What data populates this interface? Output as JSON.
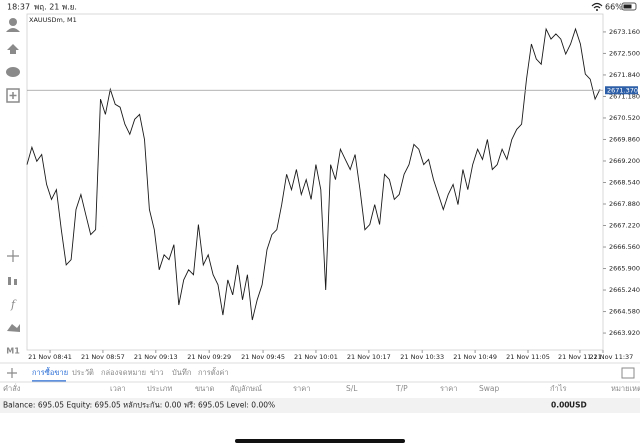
{
  "status_bar": {
    "time": "18:37",
    "date": "พฤ. 21 พ.ย.",
    "battery": "66%"
  },
  "toolbar": {
    "timeframe": "M1"
  },
  "chart": {
    "type": "line",
    "symbol": "XAUUSDm, M1",
    "color": "#1a1a1a",
    "values": [
      2669.09,
      2669.62,
      2669.19,
      2669.4,
      2668.48,
      2668.02,
      2668.32,
      2667.09,
      2666.01,
      2666.17,
      2667.71,
      2668.17,
      2667.55,
      2666.94,
      2667.09,
      2671.1,
      2670.63,
      2671.4,
      2670.94,
      2670.85,
      2670.33,
      2670.02,
      2670.48,
      2670.63,
      2669.86,
      2667.71,
      2667.09,
      2665.86,
      2666.32,
      2666.17,
      2666.63,
      2664.78,
      2665.55,
      2665.86,
      2665.71,
      2667.25,
      2666.01,
      2666.32,
      2665.71,
      2665.4,
      2664.47,
      2665.55,
      2665.09,
      2666.01,
      2664.94,
      2665.71,
      2664.32,
      2664.94,
      2665.4,
      2666.48,
      2666.94,
      2667.09,
      2667.86,
      2668.79,
      2668.32,
      2668.94,
      2668.17,
      2668.63,
      2668.02,
      2669.09,
      2668.32,
      2665.24,
      2669.09,
      2668.63,
      2669.56,
      2669.25,
      2668.94,
      2669.4,
      2668.32,
      2667.09,
      2667.25,
      2667.86,
      2667.25,
      2668.79,
      2668.63,
      2668.02,
      2668.17,
      2668.79,
      2669.09,
      2669.71,
      2669.56,
      2669.09,
      2669.25,
      2668.63,
      2668.17,
      2667.71,
      2668.17,
      2668.48,
      2667.86,
      2668.94,
      2668.32,
      2669.09,
      2669.56,
      2669.25,
      2669.86,
      2668.94,
      2669.09,
      2669.56,
      2669.25,
      2669.86,
      2670.17,
      2670.33,
      2671.71,
      2672.79,
      2672.33,
      2672.17,
      2673.25,
      2672.94,
      2673.1,
      2672.94,
      2672.48,
      2672.79,
      2673.25,
      2672.79,
      2671.87,
      2671.71,
      2671.1,
      2671.4
    ],
    "xlim": [
      0,
      117
    ],
    "xticks": [
      {
        "value": 4.7,
        "label": "21 Nov 08:41"
      },
      {
        "value": 15.5,
        "label": "21 Nov 08:57"
      },
      {
        "value": 26.3,
        "label": "21 Nov 09:13"
      },
      {
        "value": 37.2,
        "label": "21 Nov 09:29"
      },
      {
        "value": 48.2,
        "label": "21 Nov 09:45"
      },
      {
        "value": 59,
        "label": "21 Nov 10:01"
      },
      {
        "value": 69.8,
        "label": "21 Nov 10:17"
      },
      {
        "value": 80.7,
        "label": "21 Nov 10:33"
      },
      {
        "value": 91.5,
        "label": "21 Nov 10:49"
      },
      {
        "value": 102.3,
        "label": "21 Nov 11:05"
      },
      {
        "value": 112.9,
        "label": "21 Nov 11:21"
      },
      {
        "value": 123.8,
        "label": "21 Nov 11:37"
      }
    ],
    "ylim": [
      2663.4,
      2673.71
    ],
    "yticks": [
      {
        "value": 2673.16,
        "label": "2673.160"
      },
      {
        "value": 2672.5,
        "label": "2672.500"
      },
      {
        "value": 2671.84,
        "label": "2671.840"
      },
      {
        "value": 2671.18,
        "label": "2671.180"
      },
      {
        "value": 2670.52,
        "label": "2670.520"
      },
      {
        "value": 2669.86,
        "label": "2669.860"
      },
      {
        "value": 2669.2,
        "label": "2669.200"
      },
      {
        "value": 2668.54,
        "label": "2668.540"
      },
      {
        "value": 2667.88,
        "label": "2667.880"
      },
      {
        "value": 2667.22,
        "label": "2667.220"
      },
      {
        "value": 2666.56,
        "label": "2666.560"
      },
      {
        "value": 2665.9,
        "label": "2665.900"
      },
      {
        "value": 2665.24,
        "label": "2665.240"
      },
      {
        "value": 2664.58,
        "label": "2664.580"
      },
      {
        "value": 2663.92,
        "label": "2663.920"
      }
    ],
    "current_price": {
      "value": 2671.37,
      "label": "2671.370"
    }
  },
  "tabs": [
    "การซื้อขาย",
    "ประวัติ",
    "กล่องจดหมาย",
    "ข่าว",
    "บันทึก",
    "การตั้งค่า"
  ],
  "table": {
    "columns": [
      "คำสั่ง",
      "เวลา",
      "ประเภท",
      "ขนาด",
      "สัญลักษณ์",
      "ราคา",
      "S/L",
      "T/P",
      "ราคา",
      "Swap",
      "กำไร",
      "หมายเหตุ"
    ]
  },
  "account": {
    "summary": "Balance: 695.05 Equity: 695.05 หลักประกัน: 0.00 ฟรี: 695.05 Level: 0.00%",
    "profit": "0.00",
    "currency": "USD"
  }
}
